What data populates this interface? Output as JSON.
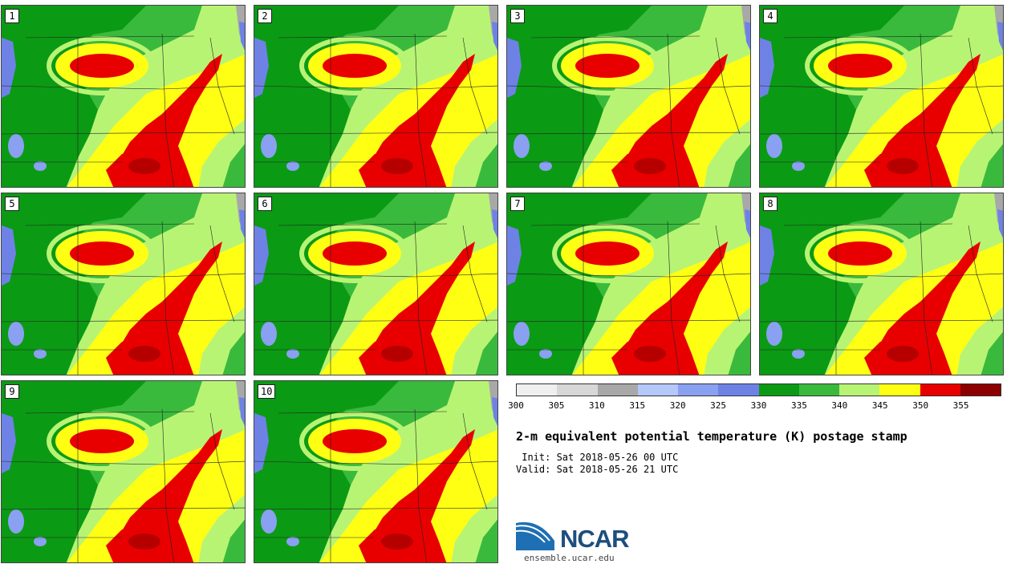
{
  "panels": [
    {
      "label": "1"
    },
    {
      "label": "2"
    },
    {
      "label": "3"
    },
    {
      "label": "4"
    },
    {
      "label": "5"
    },
    {
      "label": "6"
    },
    {
      "label": "7"
    },
    {
      "label": "8"
    },
    {
      "label": "9"
    },
    {
      "label": "10"
    }
  ],
  "colorbar": {
    "colors": [
      "#efefef",
      "#d7d7d7",
      "#a8a8a8",
      "#b4c8fa",
      "#8aa0f0",
      "#6e82e6",
      "#0b9a14",
      "#3aba3c",
      "#b8f474",
      "#ffff14",
      "#e80000",
      "#8c0000"
    ],
    "ticks": [
      "300",
      "305",
      "310",
      "315",
      "320",
      "325",
      "330",
      "335",
      "340",
      "345",
      "350",
      "355"
    ]
  },
  "title": "2-m equivalent potential temperature (K) postage stamp",
  "init": " Init: Sat 2018-05-26 00 UTC",
  "valid": "Valid: Sat 2018-05-26 21 UTC",
  "logo": {
    "word": "NCAR",
    "url": "ensemble.ucar.edu"
  }
}
